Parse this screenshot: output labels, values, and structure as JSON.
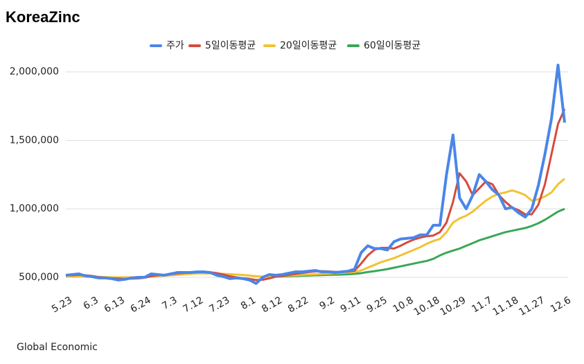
{
  "chart_data": {
    "type": "line",
    "title": "KoreaZinc",
    "source": "Global Economic",
    "categories": [
      "5.23",
      null,
      null,
      null,
      "6.3",
      null,
      null,
      null,
      "6.13",
      null,
      null,
      null,
      "6.24",
      null,
      null,
      null,
      "7.3",
      null,
      null,
      null,
      "7.12",
      null,
      null,
      null,
      "7.23",
      null,
      null,
      null,
      "8.1",
      null,
      null,
      null,
      "8.12",
      null,
      null,
      null,
      "8.22",
      null,
      null,
      null,
      "9.2",
      null,
      null,
      null,
      "9.11",
      null,
      null,
      null,
      "9.25",
      null,
      null,
      null,
      "10.8",
      null,
      null,
      null,
      "10.18",
      null,
      null,
      null,
      "10.29",
      null,
      null,
      null,
      "11.7",
      null,
      null,
      null,
      "11.18",
      null,
      null,
      null,
      "11.27",
      null,
      null,
      null,
      "12.6"
    ],
    "series": [
      {
        "name": "주가",
        "color": "#4a86e8",
        "values": [
          515000,
          520000,
          525000,
          510000,
          505000,
          495000,
          495000,
          490000,
          480000,
          485000,
          495000,
          500000,
          500000,
          525000,
          520000,
          515000,
          525000,
          535000,
          535000,
          535000,
          540000,
          540000,
          535000,
          515000,
          505000,
          490000,
          495000,
          490000,
          480000,
          455000,
          500000,
          520000,
          515000,
          520000,
          530000,
          540000,
          540000,
          545000,
          550000,
          540000,
          540000,
          535000,
          540000,
          545000,
          560000,
          680000,
          730000,
          710000,
          710000,
          700000,
          760000,
          780000,
          785000,
          790000,
          810000,
          810000,
          880000,
          880000,
          1250000,
          1540000,
          1080000,
          1000000,
          1100000,
          1250000,
          1200000,
          1140000,
          1100000,
          1000000,
          1010000,
          970000,
          940000,
          1000000,
          1170000,
          1400000,
          1660000,
          2050000,
          1630000
        ]
      },
      {
        "name": "5일이동평균",
        "color": "#d64a3b",
        "values": [
          515000,
          515000,
          518000,
          515000,
          510000,
          502000,
          497000,
          493000,
          490000,
          488000,
          490000,
          492000,
          497000,
          508000,
          515000,
          518000,
          522000,
          528000,
          532000,
          535000,
          537000,
          538000,
          537000,
          530000,
          520000,
          508000,
          500000,
          493000,
          488000,
          480000,
          482000,
          492000,
          505000,
          510000,
          518000,
          525000,
          532000,
          538000,
          543000,
          545000,
          543000,
          540000,
          540000,
          542000,
          548000,
          600000,
          660000,
          700000,
          715000,
          715000,
          710000,
          730000,
          755000,
          775000,
          790000,
          800000,
          805000,
          830000,
          900000,
          1050000,
          1260000,
          1200000,
          1100000,
          1150000,
          1200000,
          1180000,
          1100000,
          1050000,
          1010000,
          990000,
          960000,
          960000,
          1030000,
          1180000,
          1400000,
          1620000,
          1730000
        ]
      },
      {
        "name": "20일이동평균",
        "color": "#f1c232",
        "values": [
          505000,
          505000,
          505000,
          505000,
          505000,
          503000,
          502000,
          500000,
          500000,
          500000,
          500000,
          500000,
          502000,
          505000,
          508000,
          512000,
          515000,
          518000,
          522000,
          525000,
          528000,
          528000,
          528000,
          527000,
          525000,
          523000,
          520000,
          517000,
          513000,
          508000,
          505000,
          505000,
          508000,
          510000,
          513000,
          515000,
          518000,
          520000,
          522000,
          525000,
          527000,
          530000,
          532000,
          535000,
          538000,
          550000,
          570000,
          590000,
          610000,
          625000,
          640000,
          660000,
          680000,
          700000,
          720000,
          745000,
          765000,
          780000,
          830000,
          900000,
          930000,
          950000,
          980000,
          1020000,
          1060000,
          1090000,
          1110000,
          1120000,
          1135000,
          1120000,
          1100000,
          1060000,
          1070000,
          1090000,
          1120000,
          1180000,
          1220000
        ]
      },
      {
        "name": "60일이동평균",
        "color": "#3aa757",
        "values": [
          null,
          null,
          null,
          null,
          null,
          null,
          null,
          null,
          null,
          null,
          null,
          null,
          null,
          null,
          null,
          null,
          null,
          null,
          null,
          null,
          null,
          null,
          null,
          null,
          null,
          null,
          null,
          null,
          null,
          null,
          null,
          null,
          505000,
          507000,
          508000,
          510000,
          512000,
          513000,
          515000,
          516000,
          518000,
          519000,
          520000,
          522000,
          525000,
          530000,
          538000,
          545000,
          552000,
          560000,
          570000,
          580000,
          590000,
          600000,
          610000,
          620000,
          635000,
          660000,
          680000,
          695000,
          710000,
          730000,
          750000,
          770000,
          785000,
          800000,
          815000,
          830000,
          840000,
          850000,
          860000,
          875000,
          895000,
          920000,
          950000,
          980000,
          1000000
        ]
      }
    ],
    "ylim": [
      400000,
      2100000
    ],
    "yticks": [
      {
        "value": 500000,
        "label": "500,000"
      },
      {
        "value": 1000000,
        "label": "1,000,000"
      },
      {
        "value": 1500000,
        "label": "1,500,000"
      },
      {
        "value": 2000000,
        "label": "2,000,000"
      }
    ],
    "grid": true,
    "legend": "top"
  }
}
